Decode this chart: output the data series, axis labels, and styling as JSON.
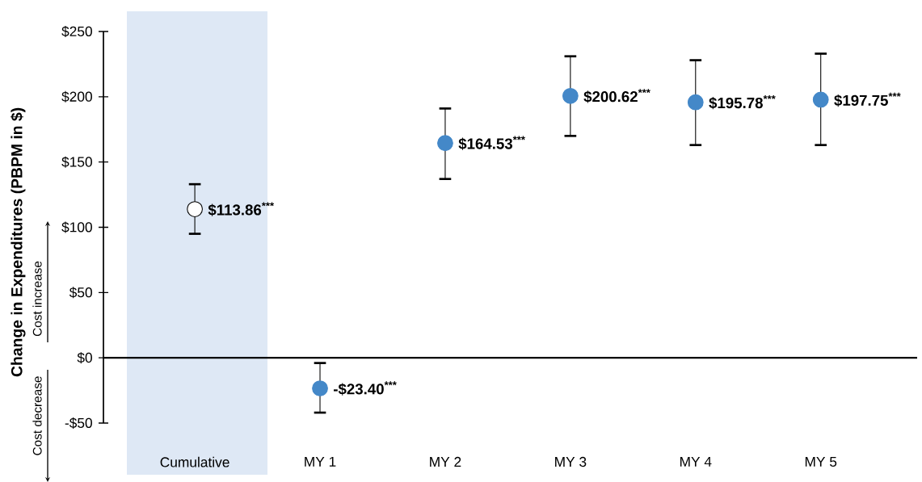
{
  "chart_data": {
    "type": "scatter",
    "ylabel": "Change in Expenditures (PBPM in $)",
    "categories": [
      "Cumulative",
      "MY 1",
      "MY 2",
      "MY 3",
      "MY 4",
      "MY 5"
    ],
    "values": [
      113.86,
      -23.4,
      164.53,
      200.62,
      195.78,
      197.75
    ],
    "errors": [
      [
        95,
        133
      ],
      [
        -42,
        -4
      ],
      [
        137,
        191
      ],
      [
        170,
        231
      ],
      [
        163,
        228
      ],
      [
        163,
        233
      ]
    ],
    "colors": [
      "#ffffff",
      "#4488c8",
      "#4488c8",
      "#4488c8",
      "#4488c8",
      "#4488c8"
    ],
    "value_labels": [
      "$113.86$^{***}$",
      "-$23.40$^{***}$",
      "$164.53$^{***}$",
      "$200.62$^{***}$",
      "$195.78$^{***}$",
      "$197.75$^{***}$"
    ],
    "marker": "circle",
    "ylim": [
      -50,
      250
    ],
    "yticks": [
      {
        "value": -50,
        "label": "-$50"
      },
      {
        "value": 0,
        "label": "$0"
      },
      {
        "value": 50,
        "label": "$50"
      },
      {
        "value": 100,
        "label": "$100"
      },
      {
        "value": 150,
        "label": "$150"
      },
      {
        "value": 200,
        "label": "$200"
      },
      {
        "value": 250,
        "label": "$250"
      }
    ],
    "annotations": [
      "Cost increase",
      "Cost decrease"
    ]
  }
}
